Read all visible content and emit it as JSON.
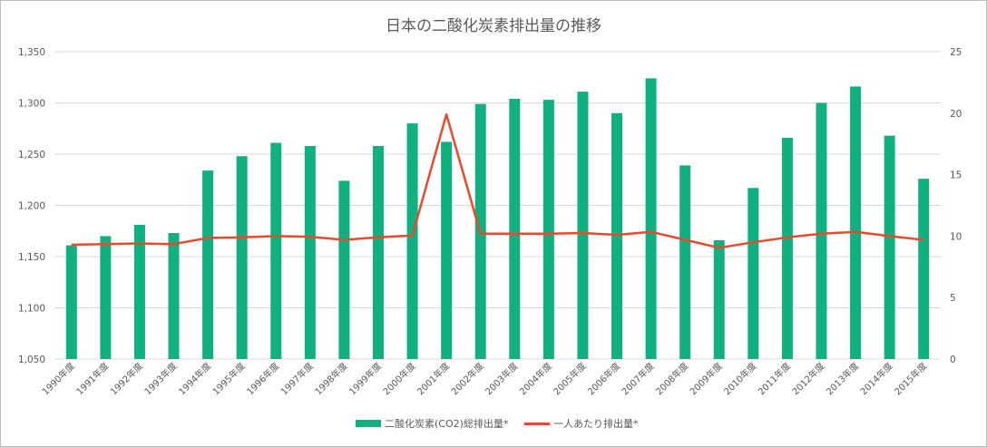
{
  "chart_data": {
    "type": "bar",
    "title": "日本の二酸化炭素排出量の推移",
    "categories": [
      "1990年度",
      "1991年度",
      "1992年度",
      "1993年度",
      "1994年度",
      "1995年度",
      "1996年度",
      "1997年度",
      "1998年度",
      "1999年度",
      "2000年度",
      "2001年度",
      "2002年度",
      "2003年度",
      "2004年度",
      "2005年度",
      "2006年度",
      "2007年度",
      "2008年度",
      "2009年度",
      "2010年度",
      "2011年度",
      "2012年度",
      "2013年度",
      "2014年度",
      "2015年度"
    ],
    "series": [
      {
        "name": "二酸化炭素(CO2)総排出量*",
        "type": "bar",
        "axis": "left",
        "color": "#10B080",
        "values": [
          1161,
          1170,
          1181,
          1173,
          1234,
          1248,
          1261,
          1258,
          1224,
          1258,
          1280,
          1262,
          1299,
          1304,
          1303,
          1311,
          1290,
          1324,
          1239,
          1166,
          1217,
          1266,
          1300,
          1316,
          1268,
          1226
        ]
      },
      {
        "name": "一人あたり排出量*",
        "type": "line",
        "axis": "right",
        "color": "#E8492F",
        "values": [
          9.3,
          9.35,
          9.4,
          9.35,
          9.85,
          9.9,
          10.0,
          9.95,
          9.7,
          9.9,
          10.05,
          19.9,
          10.2,
          10.2,
          10.2,
          10.25,
          10.1,
          10.35,
          9.7,
          9.05,
          9.5,
          9.9,
          10.2,
          10.35,
          10.0,
          9.7
        ]
      }
    ],
    "ylim": [
      1050,
      1350
    ],
    "y_ticks": [
      1050,
      1100,
      1150,
      1200,
      1250,
      1300,
      1350
    ],
    "y_tick_labels": [
      "1,050",
      "1,100",
      "1,150",
      "1,200",
      "1,250",
      "1,300",
      "1,350"
    ],
    "y2lim": [
      0,
      25
    ],
    "y2_ticks": [
      0,
      5,
      10,
      15,
      20,
      25
    ],
    "y2_tick_labels": [
      "0",
      "5",
      "10",
      "15",
      "20",
      "25"
    ],
    "grid": true,
    "legend_position": "bottom"
  }
}
